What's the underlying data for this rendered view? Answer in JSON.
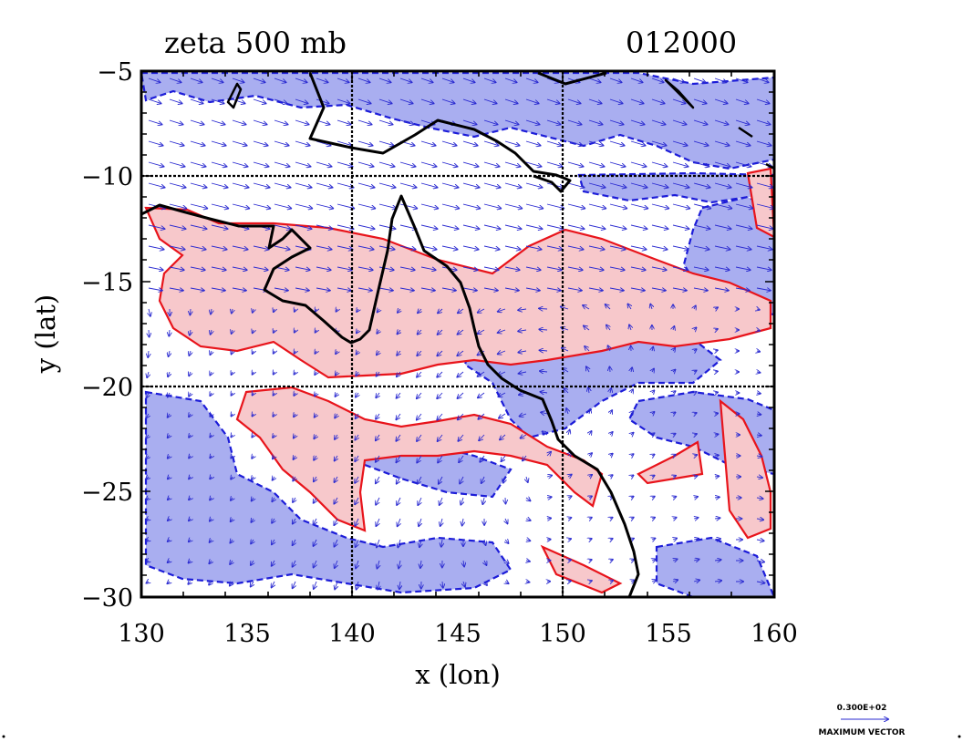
{
  "header": {
    "title": "zeta 500 mb",
    "timestamp": "012000"
  },
  "axes": {
    "xlabel": "x (lon)",
    "ylabel": "y (lat)",
    "xlim": [
      130,
      160
    ],
    "ylim": [
      -30,
      -5
    ],
    "xticks": [
      130,
      135,
      140,
      145,
      150,
      155,
      160
    ],
    "yticks": [
      -5,
      -10,
      -15,
      -20,
      -25,
      -30
    ],
    "x_tick_labels": [
      "130",
      "135",
      "140",
      "145",
      "150",
      "155",
      "160"
    ],
    "y_tick_labels": [
      "−5",
      "−10",
      "−15",
      "−20",
      "−25",
      "−30"
    ],
    "grid_lines": {
      "lon": [
        140,
        150
      ],
      "lat": [
        -10,
        -20
      ]
    }
  },
  "colors": {
    "positive_contour": "#e8141b",
    "positive_fill": "#f7c8cb",
    "negative_contour": "#1c1cd8",
    "negative_fill": "#a9aef0",
    "coastline": "#000000",
    "vector": "#2a2ad0"
  },
  "legend": {
    "value": "0.300E+02",
    "caption": "MAXIMUM VECTOR"
  }
}
